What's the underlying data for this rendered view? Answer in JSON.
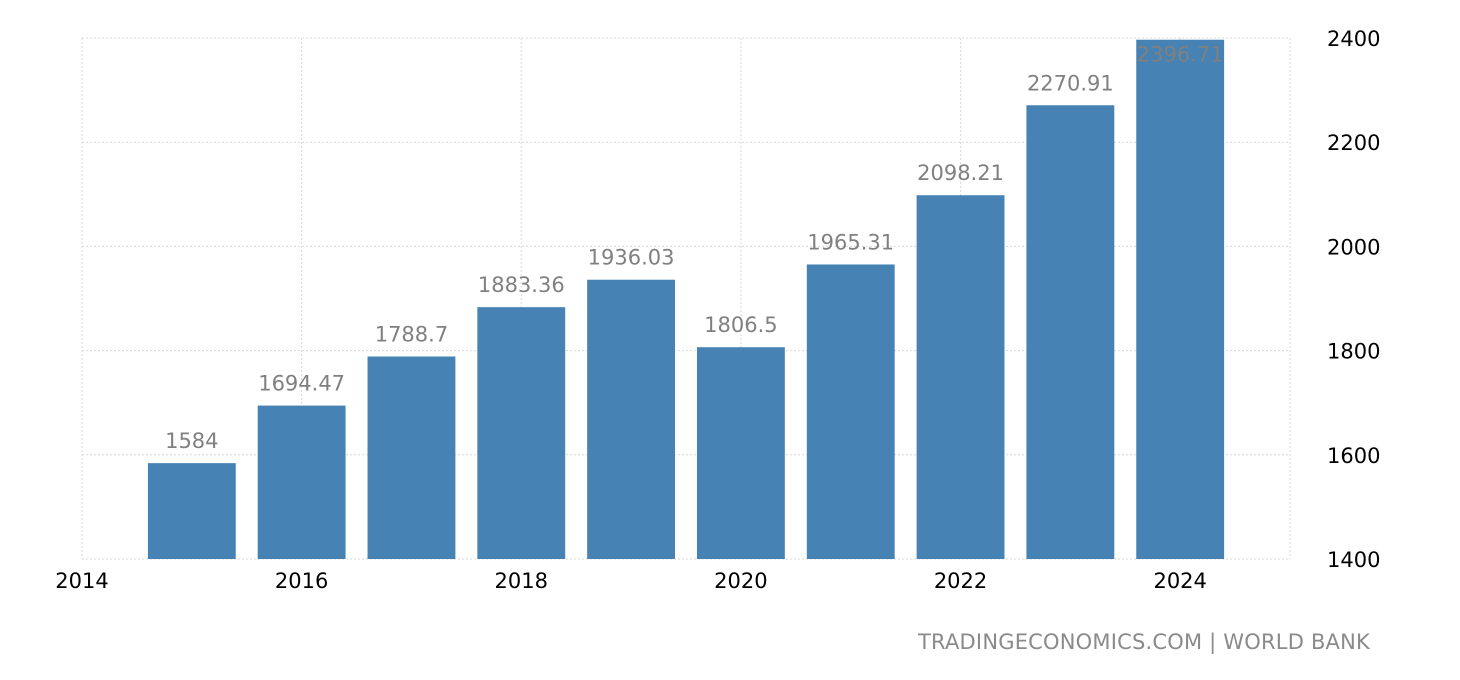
{
  "source_credit": "TRADINGECONOMICS.COM | WORLD BANK",
  "colors": {
    "bar": "#4682b4",
    "data_label": "#808080",
    "grid": "#d9d9d9"
  },
  "chart_data": {
    "type": "bar",
    "x": [
      2015,
      2016,
      2017,
      2018,
      2019,
      2020,
      2021,
      2022,
      2023,
      2024
    ],
    "values": [
      1584,
      1694.47,
      1788.7,
      1883.36,
      1936.03,
      1806.5,
      1965.31,
      2098.21,
      2270.91,
      2396.71
    ],
    "data_labels": [
      "1584",
      "1694.47",
      "1788.7",
      "1883.36",
      "1936.03",
      "1806.5",
      "1965.31",
      "2098.21",
      "2270.91",
      "2396.71"
    ],
    "x_ticks": [
      "2014",
      "2016",
      "2018",
      "2020",
      "2022",
      "2024"
    ],
    "y_ticks": [
      "1400",
      "1600",
      "1800",
      "2000",
      "2200",
      "2400"
    ],
    "xlim": [
      2014,
      2025
    ],
    "ylim": [
      1400,
      2400
    ],
    "title": "",
    "xlabel": "",
    "ylabel": "",
    "grid": true,
    "y_axis_side": "right",
    "legend": "none"
  }
}
